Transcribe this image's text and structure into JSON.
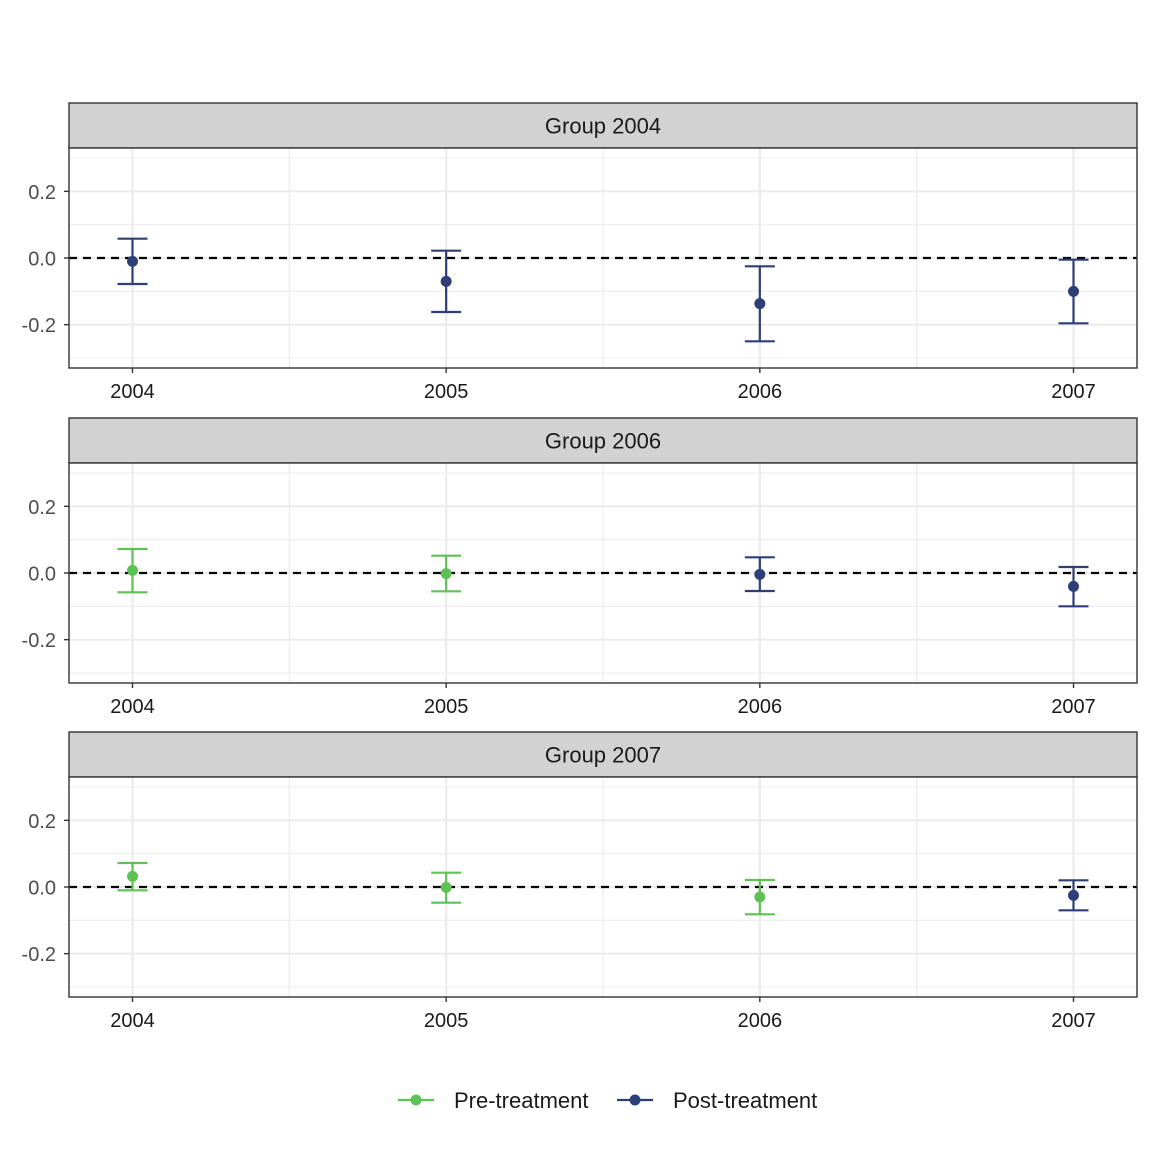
{
  "colors": {
    "pre": "#5DC253",
    "post": "#2E3F78",
    "strip_fill": "#D2D2D2",
    "grid": "#EBEBEB",
    "frame": "#333333"
  },
  "legend": {
    "pre_label": "Pre-treatment",
    "post_label": "Post-treatment"
  },
  "chart_data": {
    "type": "scatter",
    "subtype": "point-errorbar-facets",
    "ylim": [
      -0.33,
      0.33
    ],
    "y_ticks": [
      -0.2,
      0.0,
      0.2
    ],
    "y_tick_labels": [
      "-0.2",
      "0.0",
      "0.2"
    ],
    "x_categories": [
      "2004",
      "2005",
      "2006",
      "2007"
    ],
    "reference_line_y": 0,
    "reference_line_style": "dashed",
    "grid": true,
    "legend_position": "bottom",
    "panels": [
      {
        "title": "Group 2004",
        "points": [
          {
            "x": "2004",
            "y": -0.01,
            "lower": -0.078,
            "upper": 0.058,
            "status": "post"
          },
          {
            "x": "2005",
            "y": -0.07,
            "lower": -0.162,
            "upper": 0.022,
            "status": "post"
          },
          {
            "x": "2006",
            "y": -0.137,
            "lower": -0.25,
            "upper": -0.025,
            "status": "post"
          },
          {
            "x": "2007",
            "y": -0.1,
            "lower": -0.196,
            "upper": -0.005,
            "status": "post"
          }
        ]
      },
      {
        "title": "Group 2006",
        "points": [
          {
            "x": "2004",
            "y": 0.008,
            "lower": -0.058,
            "upper": 0.072,
            "status": "pre"
          },
          {
            "x": "2005",
            "y": -0.002,
            "lower": -0.055,
            "upper": 0.052,
            "status": "pre"
          },
          {
            "x": "2006",
            "y": -0.004,
            "lower": -0.054,
            "upper": 0.047,
            "status": "post"
          },
          {
            "x": "2007",
            "y": -0.04,
            "lower": -0.1,
            "upper": 0.018,
            "status": "post"
          }
        ]
      },
      {
        "title": "Group 2007",
        "points": [
          {
            "x": "2004",
            "y": 0.032,
            "lower": -0.01,
            "upper": 0.072,
            "status": "pre"
          },
          {
            "x": "2005",
            "y": -0.001,
            "lower": -0.047,
            "upper": 0.043,
            "status": "pre"
          },
          {
            "x": "2006",
            "y": -0.03,
            "lower": -0.082,
            "upper": 0.021,
            "status": "pre"
          },
          {
            "x": "2007",
            "y": -0.025,
            "lower": -0.07,
            "upper": 0.02,
            "status": "post"
          }
        ]
      }
    ]
  }
}
